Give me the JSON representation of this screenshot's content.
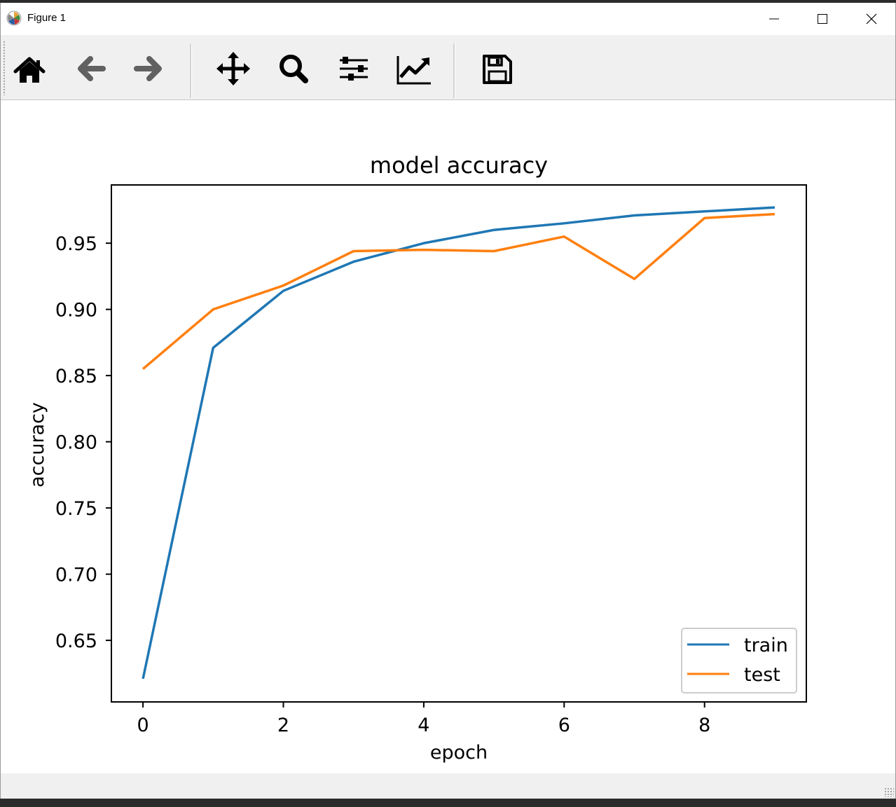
{
  "window": {
    "title": "Figure 1"
  },
  "toolbar": {
    "buttons": [
      {
        "name": "home-button",
        "icon": "home-icon",
        "tooltip": "Reset original view"
      },
      {
        "name": "back-button",
        "icon": "arrow-left-icon",
        "tooltip": "Back to previous view"
      },
      {
        "name": "forward-button",
        "icon": "arrow-right-icon",
        "tooltip": "Forward to next view"
      },
      {
        "name": "pan-button",
        "icon": "move-arrows-icon",
        "tooltip": "Pan axes"
      },
      {
        "name": "zoom-button",
        "icon": "magnifier-icon",
        "tooltip": "Zoom to rectangle"
      },
      {
        "name": "subplots-button",
        "icon": "sliders-icon",
        "tooltip": "Configure subplots"
      },
      {
        "name": "edit-axis-button",
        "icon": "line-chart-icon",
        "tooltip": "Edit axis, curve and image parameters"
      },
      {
        "name": "save-button",
        "icon": "floppy-disk-icon",
        "tooltip": "Save the figure"
      }
    ]
  },
  "colors": {
    "train": "#1f77b4",
    "test": "#ff7f0e"
  },
  "chart_data": {
    "type": "line",
    "title": "model accuracy",
    "xlabel": "epoch",
    "ylabel": "accuracy",
    "x": [
      0,
      1,
      2,
      3,
      4,
      5,
      6,
      7,
      8,
      9
    ],
    "series": [
      {
        "name": "train",
        "values": [
          0.621,
          0.871,
          0.914,
          0.936,
          0.95,
          0.96,
          0.965,
          0.971,
          0.974,
          0.977
        ]
      },
      {
        "name": "test",
        "values": [
          0.855,
          0.9,
          0.918,
          0.944,
          0.945,
          0.944,
          0.955,
          0.923,
          0.969,
          0.972
        ]
      }
    ],
    "xlim": [
      -0.45,
      9.45
    ],
    "ylim": [
      0.6035,
      0.994
    ],
    "xticks": [
      0,
      2,
      4,
      6,
      8
    ],
    "xtick_labels": [
      "0",
      "2",
      "4",
      "6",
      "8"
    ],
    "yticks": [
      0.65,
      0.7,
      0.75,
      0.8,
      0.85,
      0.9,
      0.95
    ],
    "ytick_labels": [
      "0.65",
      "0.70",
      "0.75",
      "0.80",
      "0.85",
      "0.90",
      "0.95"
    ],
    "grid": false,
    "legend_position": "lower right"
  }
}
